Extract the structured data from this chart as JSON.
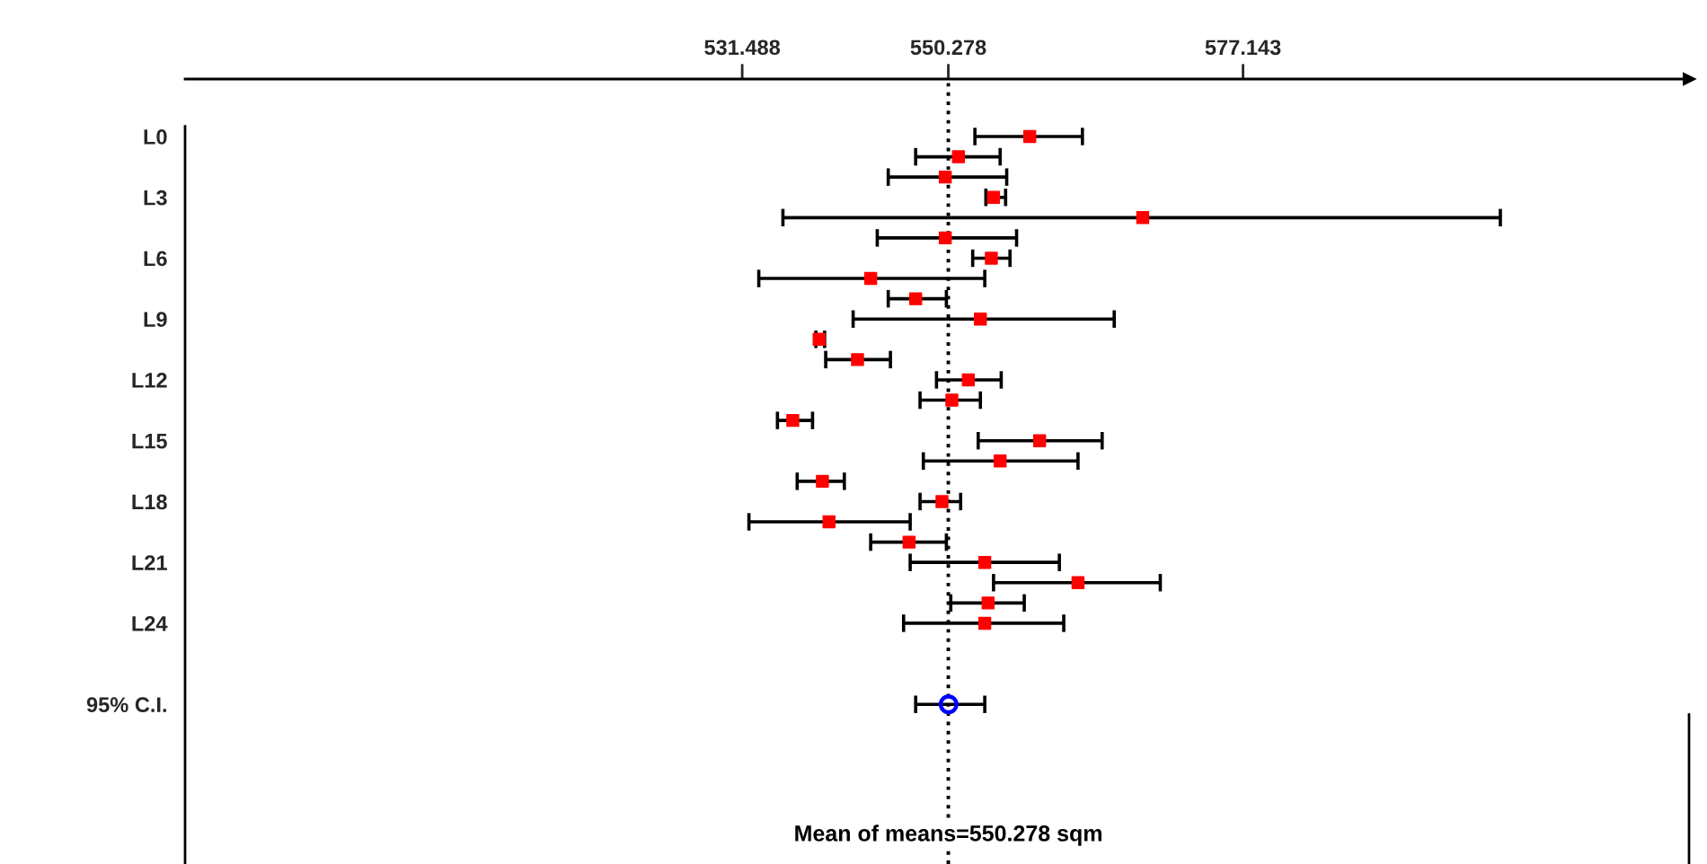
{
  "chart_data": {
    "type": "scatter",
    "orientation": "horizontal",
    "categories": [
      "L0",
      null,
      null,
      "L3",
      null,
      null,
      "L6",
      null,
      null,
      "L9",
      null,
      null,
      "L12",
      null,
      null,
      "L15",
      null,
      null,
      "L18",
      null,
      null,
      "L21",
      null,
      null,
      "L24",
      null,
      null,
      null,
      "95% C.I."
    ],
    "series": [
      {
        "color": "#ff0000",
        "marker": "square",
        "values": [
          557.7,
          551.2,
          550.0,
          554.4,
          568.0,
          550.0,
          554.2,
          543.2,
          547.3,
          553.2,
          538.5,
          542.0,
          552.1,
          550.6,
          536.1,
          558.6,
          555.0,
          538.8,
          549.7,
          539.4,
          546.7,
          553.6,
          562.1,
          553.9,
          553.6,
          null,
          null,
          null,
          null
        ],
        "errors": [
          [
            552.7,
            562.5
          ],
          [
            547.3,
            555.0
          ],
          [
            544.8,
            555.6
          ],
          [
            553.7,
            555.5
          ],
          [
            535.2,
            600.6
          ],
          [
            543.8,
            556.5
          ],
          [
            552.5,
            555.9
          ],
          [
            533.0,
            553.6
          ],
          [
            544.8,
            550.1
          ],
          [
            541.6,
            565.4
          ],
          [
            538.2,
            539.0
          ],
          [
            539.1,
            545.0
          ],
          [
            549.2,
            555.1
          ],
          [
            547.7,
            553.2
          ],
          [
            534.7,
            537.9
          ],
          [
            553.0,
            564.3
          ],
          [
            548.0,
            562.1
          ],
          [
            536.5,
            540.8
          ],
          [
            547.7,
            551.4
          ],
          [
            532.1,
            546.8
          ],
          [
            543.2,
            550.1
          ],
          [
            546.8,
            560.4
          ],
          [
            554.4,
            569.6
          ],
          [
            550.5,
            557.2
          ],
          [
            546.2,
            560.8
          ],
          null,
          null,
          null,
          null
        ]
      },
      {
        "color": "#0000ff",
        "marker": "circle",
        "values": [
          null,
          null,
          null,
          null,
          null,
          null,
          null,
          null,
          null,
          null,
          null,
          null,
          null,
          null,
          null,
          null,
          null,
          null,
          null,
          null,
          null,
          null,
          null,
          null,
          null,
          null,
          null,
          null,
          550.3
        ],
        "errors": [
          null,
          null,
          null,
          null,
          null,
          null,
          null,
          null,
          null,
          null,
          null,
          null,
          null,
          null,
          null,
          null,
          null,
          null,
          null,
          null,
          null,
          null,
          null,
          null,
          null,
          null,
          null,
          null,
          [
            547.3,
            553.6
          ]
        ]
      }
    ],
    "xlim": [
      480.7,
      617.8
    ],
    "xticks": [
      531.488,
      550.278,
      577.143
    ],
    "ref_lines": [
      {
        "axis": "x",
        "value": 550.278,
        "label": "Mean of means=550.278 sqm",
        "line_style": "dotted",
        "color": "#000000"
      }
    ]
  }
}
